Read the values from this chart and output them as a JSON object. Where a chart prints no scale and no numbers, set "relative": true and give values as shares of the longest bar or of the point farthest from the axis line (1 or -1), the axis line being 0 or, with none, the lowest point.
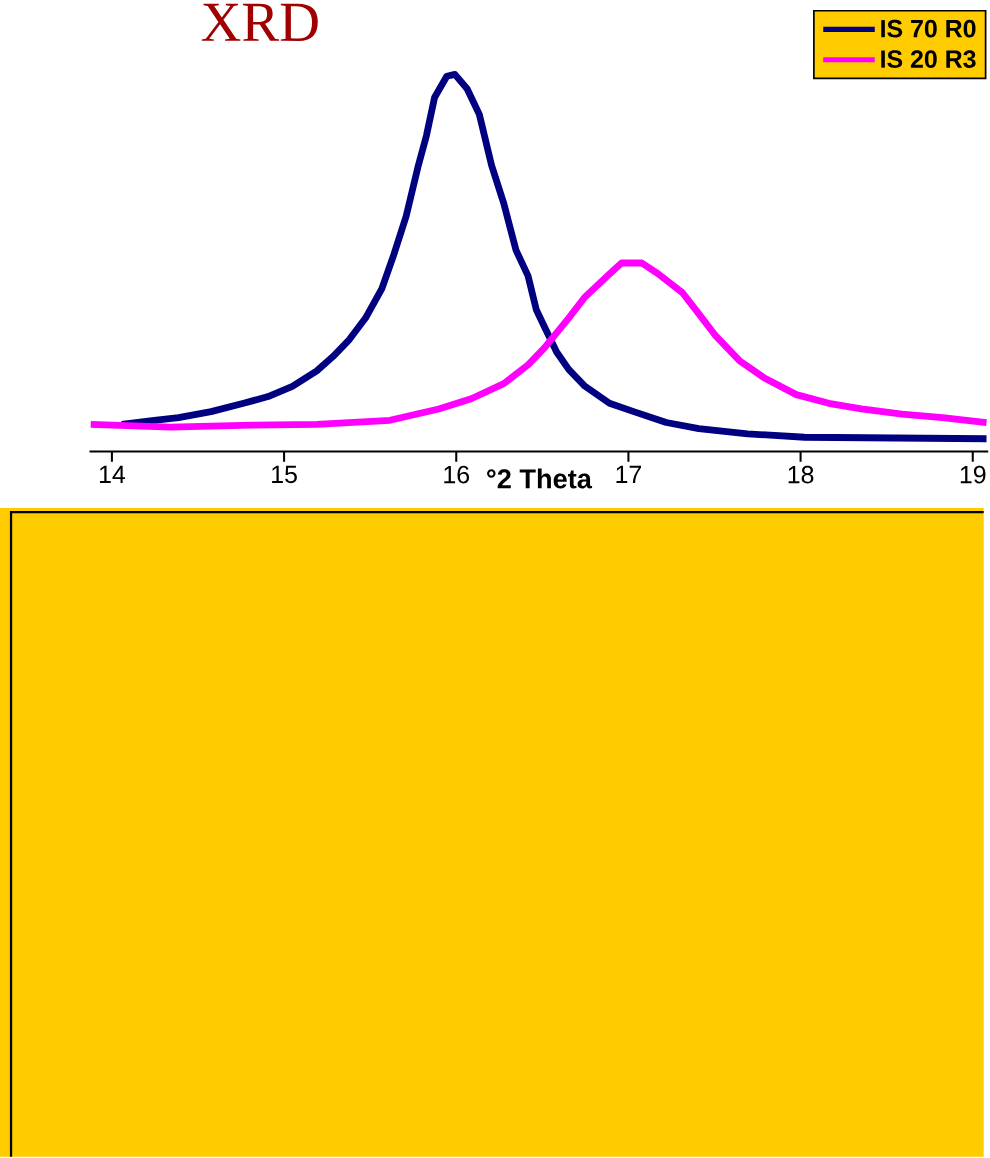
{
  "chart_data": {
    "type": "line",
    "title": "XRD",
    "xlabel": "°2 Theta",
    "relative": true,
    "xlim": [
      13.87,
      19.09
    ],
    "xticks": [
      14,
      15,
      16,
      17,
      18,
      19
    ],
    "legend": "top right",
    "series": [
      {
        "name": "IS 70 R0",
        "color": "#000080",
        "x": [
          14.057,
          14.246,
          14.387,
          14.576,
          14.765,
          14.907,
          15.048,
          15.19,
          15.284,
          15.379,
          15.473,
          15.568,
          15.638,
          15.709,
          15.78,
          15.827,
          15.874,
          15.945,
          15.992,
          16.063,
          16.134,
          16.205,
          16.276,
          16.347,
          16.417,
          16.465,
          16.512,
          16.583,
          16.653,
          16.748,
          16.89,
          17.031,
          17.22,
          17.409,
          17.692,
          18.023,
          19.08
        ],
        "values": [
          0.072,
          0.083,
          0.09,
          0.106,
          0.128,
          0.146,
          0.173,
          0.214,
          0.252,
          0.297,
          0.354,
          0.432,
          0.523,
          0.624,
          0.759,
          0.838,
          0.939,
          0.995,
          1,
          0.962,
          0.894,
          0.759,
          0.658,
          0.534,
          0.466,
          0.376,
          0.331,
          0.264,
          0.218,
          0.173,
          0.128,
          0.106,
          0.077,
          0.061,
          0.047,
          0.038,
          0.034
        ]
      },
      {
        "name": "IS 20 R3",
        "color": "#ff00ff",
        "x": [
          13.877,
          14.34,
          14.812,
          15.19,
          15.615,
          15.898,
          16.087,
          16.276,
          16.417,
          16.512,
          16.653,
          16.748,
          16.89,
          16.96,
          17.078,
          17.173,
          17.314,
          17.409,
          17.503,
          17.645,
          17.787,
          17.975,
          18.164,
          18.353,
          18.589,
          18.825,
          19.08
        ],
        "values": [
          0.072,
          0.065,
          0.07,
          0.072,
          0.083,
          0.113,
          0.14,
          0.18,
          0.23,
          0.275,
          0.354,
          0.41,
          0.471,
          0.5,
          0.5,
          0.471,
          0.421,
          0.365,
          0.309,
          0.241,
          0.196,
          0.151,
          0.128,
          0.113,
          0.099,
          0.09,
          0.077
        ]
      }
    ]
  }
}
